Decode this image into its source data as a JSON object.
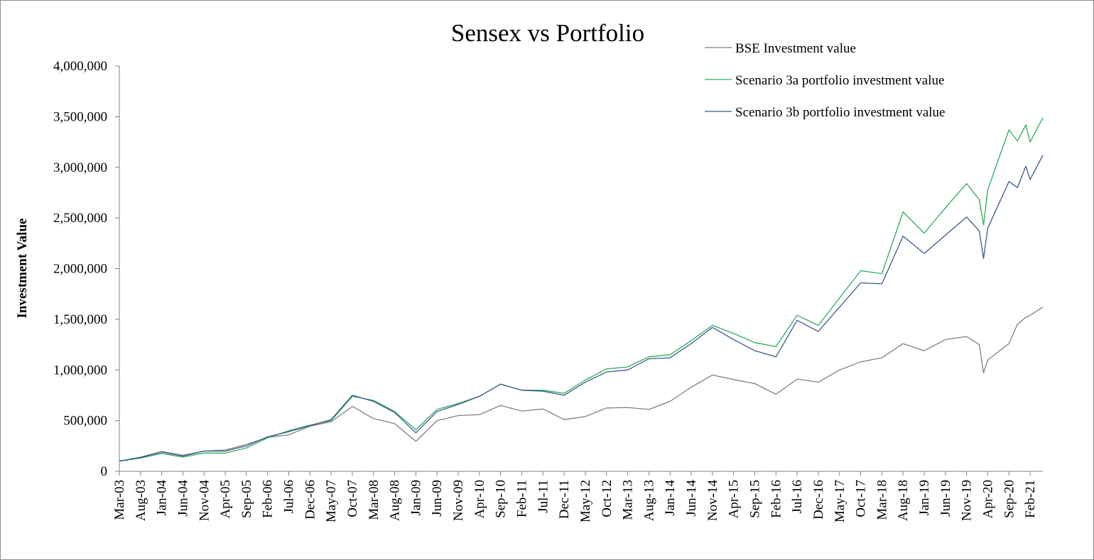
{
  "chart_data": {
    "type": "line",
    "title": "Sensex vs Portfolio",
    "xlabel": "",
    "ylabel": "Investment Value",
    "ylim": [
      0,
      4000000
    ],
    "yticks": [
      0,
      500000,
      1000000,
      1500000,
      2000000,
      2500000,
      3000000,
      3500000,
      4000000
    ],
    "ytick_labels": [
      "0",
      "500,000",
      "1,000,000",
      "1,500,000",
      "2,000,000",
      "2,500,000",
      "3,000,000",
      "3,500,000",
      "4,000,000"
    ],
    "x_start": "Mar-03",
    "x_end": "May-21",
    "x_tick_labels": [
      "Mar-03",
      "Aug-03",
      "Jan-04",
      "Jun-04",
      "Nov-04",
      "Apr-05",
      "Sep-05",
      "Feb-06",
      "Jul-06",
      "Dec-06",
      "May-07",
      "Oct-07",
      "Mar-08",
      "Aug-08",
      "Jan-09",
      "Jun-09",
      "Nov-09",
      "Apr-10",
      "Sep-10",
      "Feb-11",
      "Jul-11",
      "Dec-11",
      "May-12",
      "Oct-12",
      "Mar-13",
      "Aug-13",
      "Jan-14",
      "Jun-14",
      "Nov-14",
      "Apr-15",
      "Sep-15",
      "Feb-16",
      "Jul-16",
      "Dec-16",
      "May-17",
      "Oct-17",
      "Mar-18",
      "Aug-18",
      "Jan-19",
      "Jun-19",
      "Nov-19",
      "Apr-20",
      "Sep-20",
      "Feb-21"
    ],
    "legend_position": "top-right",
    "grid": false,
    "series": [
      {
        "name": "BSE Investment value",
        "color": "#808080",
        "points": [
          [
            "Mar-03",
            100000
          ],
          [
            "Aug-03",
            140000
          ],
          [
            "Jan-04",
            195000
          ],
          [
            "Jun-04",
            158000
          ],
          [
            "Nov-04",
            200000
          ],
          [
            "Apr-05",
            210000
          ],
          [
            "Sep-05",
            265000
          ],
          [
            "Feb-06",
            335000
          ],
          [
            "Jul-06",
            360000
          ],
          [
            "Dec-06",
            445000
          ],
          [
            "May-07",
            490000
          ],
          [
            "Oct-07",
            640000
          ],
          [
            "Mar-08",
            520000
          ],
          [
            "Aug-08",
            470000
          ],
          [
            "Jan-09",
            295000
          ],
          [
            "Jun-09",
            500000
          ],
          [
            "Nov-09",
            550000
          ],
          [
            "Apr-10",
            560000
          ],
          [
            "Sep-10",
            650000
          ],
          [
            "Feb-11",
            595000
          ],
          [
            "Jul-11",
            615000
          ],
          [
            "Dec-11",
            510000
          ],
          [
            "May-12",
            540000
          ],
          [
            "Oct-12",
            625000
          ],
          [
            "Mar-13",
            630000
          ],
          [
            "Aug-13",
            610000
          ],
          [
            "Jan-14",
            690000
          ],
          [
            "Jun-14",
            830000
          ],
          [
            "Nov-14",
            950000
          ],
          [
            "Apr-15",
            905000
          ],
          [
            "Sep-15",
            865000
          ],
          [
            "Feb-16",
            760000
          ],
          [
            "Jul-16",
            910000
          ],
          [
            "Dec-16",
            880000
          ],
          [
            "May-17",
            1000000
          ],
          [
            "Oct-17",
            1080000
          ],
          [
            "Mar-18",
            1120000
          ],
          [
            "Aug-18",
            1260000
          ],
          [
            "Jan-19",
            1190000
          ],
          [
            "Jun-19",
            1300000
          ],
          [
            "Nov-19",
            1330000
          ],
          [
            "Feb-20",
            1250000
          ],
          [
            "Mar-20",
            970000
          ],
          [
            "Apr-20",
            1100000
          ],
          [
            "Sep-20",
            1260000
          ],
          [
            "Nov-20",
            1450000
          ],
          [
            "Jan-21",
            1520000
          ],
          [
            "Feb-21",
            1540000
          ],
          [
            "May-21",
            1620000
          ]
        ]
      },
      {
        "name": "Scenario 3a portfolio investment value",
        "color": "#2eaa5e",
        "points": [
          [
            "Mar-03",
            100000
          ],
          [
            "Aug-03",
            130000
          ],
          [
            "Jan-04",
            175000
          ],
          [
            "Jun-04",
            140000
          ],
          [
            "Nov-04",
            180000
          ],
          [
            "Apr-05",
            180000
          ],
          [
            "Sep-05",
            230000
          ],
          [
            "Feb-06",
            330000
          ],
          [
            "Jul-06",
            400000
          ],
          [
            "Dec-06",
            455000
          ],
          [
            "May-07",
            500000
          ],
          [
            "Oct-07",
            740000
          ],
          [
            "Mar-08",
            700000
          ],
          [
            "Aug-08",
            590000
          ],
          [
            "Jan-09",
            410000
          ],
          [
            "Jun-09",
            610000
          ],
          [
            "Nov-09",
            670000
          ],
          [
            "Apr-10",
            740000
          ],
          [
            "Sep-10",
            860000
          ],
          [
            "Feb-11",
            800000
          ],
          [
            "Jul-11",
            800000
          ],
          [
            "Dec-11",
            770000
          ],
          [
            "May-12",
            900000
          ],
          [
            "Oct-12",
            1010000
          ],
          [
            "Mar-13",
            1030000
          ],
          [
            "Aug-13",
            1130000
          ],
          [
            "Jan-14",
            1150000
          ],
          [
            "Jun-14",
            1290000
          ],
          [
            "Nov-14",
            1440000
          ],
          [
            "Apr-15",
            1360000
          ],
          [
            "Sep-15",
            1270000
          ],
          [
            "Feb-16",
            1230000
          ],
          [
            "Jul-16",
            1540000
          ],
          [
            "Dec-16",
            1440000
          ],
          [
            "May-17",
            1710000
          ],
          [
            "Oct-17",
            1980000
          ],
          [
            "Mar-18",
            1950000
          ],
          [
            "Aug-18",
            2560000
          ],
          [
            "Jan-19",
            2350000
          ],
          [
            "Jun-19",
            2600000
          ],
          [
            "Nov-19",
            2840000
          ],
          [
            "Feb-20",
            2680000
          ],
          [
            "Mar-20",
            2430000
          ],
          [
            "Apr-20",
            2780000
          ],
          [
            "Sep-20",
            3370000
          ],
          [
            "Nov-20",
            3260000
          ],
          [
            "Jan-21",
            3420000
          ],
          [
            "Feb-21",
            3250000
          ],
          [
            "May-21",
            3490000
          ]
        ]
      },
      {
        "name": "Scenario 3b portfolio investment value",
        "color": "#3a5a8c",
        "points": [
          [
            "Mar-03",
            100000
          ],
          [
            "Aug-03",
            135000
          ],
          [
            "Jan-04",
            190000
          ],
          [
            "Jun-04",
            150000
          ],
          [
            "Nov-04",
            200000
          ],
          [
            "Apr-05",
            200000
          ],
          [
            "Sep-05",
            250000
          ],
          [
            "Feb-06",
            340000
          ],
          [
            "Jul-06",
            390000
          ],
          [
            "Dec-06",
            450000
          ],
          [
            "May-07",
            510000
          ],
          [
            "Oct-07",
            750000
          ],
          [
            "Mar-08",
            690000
          ],
          [
            "Aug-08",
            580000
          ],
          [
            "Jan-09",
            380000
          ],
          [
            "Jun-09",
            590000
          ],
          [
            "Nov-09",
            660000
          ],
          [
            "Apr-10",
            740000
          ],
          [
            "Sep-10",
            860000
          ],
          [
            "Feb-11",
            800000
          ],
          [
            "Jul-11",
            790000
          ],
          [
            "Dec-11",
            750000
          ],
          [
            "May-12",
            880000
          ],
          [
            "Oct-12",
            980000
          ],
          [
            "Mar-13",
            1000000
          ],
          [
            "Aug-13",
            1110000
          ],
          [
            "Jan-14",
            1120000
          ],
          [
            "Jun-14",
            1260000
          ],
          [
            "Nov-14",
            1420000
          ],
          [
            "Apr-15",
            1300000
          ],
          [
            "Sep-15",
            1190000
          ],
          [
            "Feb-16",
            1130000
          ],
          [
            "Jul-16",
            1490000
          ],
          [
            "Dec-16",
            1380000
          ],
          [
            "May-17",
            1620000
          ],
          [
            "Oct-17",
            1860000
          ],
          [
            "Mar-18",
            1850000
          ],
          [
            "Aug-18",
            2320000
          ],
          [
            "Jan-19",
            2150000
          ],
          [
            "Jun-19",
            2330000
          ],
          [
            "Nov-19",
            2510000
          ],
          [
            "Feb-20",
            2370000
          ],
          [
            "Mar-20",
            2100000
          ],
          [
            "Apr-20",
            2400000
          ],
          [
            "Sep-20",
            2860000
          ],
          [
            "Nov-20",
            2800000
          ],
          [
            "Jan-21",
            3010000
          ],
          [
            "Feb-21",
            2880000
          ],
          [
            "May-21",
            3120000
          ]
        ]
      }
    ]
  }
}
